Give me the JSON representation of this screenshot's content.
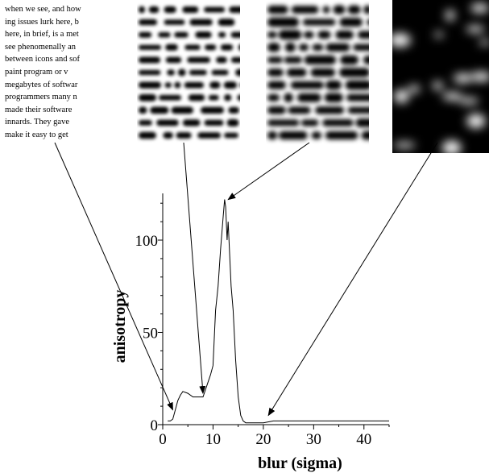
{
  "sample_text_lines": [
    "when we see, and how",
    "ing issues lurk here, b",
    "here, in brief, is a met",
    "see phenomenally an",
    "between icons and sof",
    "paint program or v",
    "megabytes of softwar",
    "programmers many n",
    "made their software",
    "innards. They gave",
    "make it easy to get"
  ],
  "chart_data": {
    "type": "line",
    "xlabel": "blur (sigma)",
    "ylabel": "anisotropy",
    "xlim": [
      0,
      45
    ],
    "ylim": [
      0,
      125
    ],
    "xticks": [
      0,
      10,
      20,
      30,
      40
    ],
    "yticks": [
      0,
      50,
      100
    ],
    "grid": false,
    "series": [
      {
        "x": [
          1.0,
          1.5,
          2.0,
          2.5,
          3.0,
          3.5,
          4.0,
          5.0,
          6.0,
          7.0,
          8.0,
          8.5,
          9.0,
          9.5,
          10.0,
          10.5,
          11.0,
          11.5,
          12.0,
          12.3,
          12.5,
          12.8,
          13.0,
          13.3,
          13.6,
          14.0,
          14.5,
          15.0,
          15.5,
          16.0,
          16.5,
          17.0,
          18.0,
          20.0,
          22.0,
          25.0,
          30.0,
          35.0,
          40.0,
          45.0
        ],
        "y": [
          2,
          2,
          3,
          8,
          13,
          16,
          18,
          17,
          15,
          15,
          15,
          19,
          23,
          27,
          32,
          62,
          75,
          95,
          112,
          122,
          118,
          100,
          110,
          92,
          75,
          62,
          35,
          15,
          5,
          2,
          1,
          1,
          1,
          1,
          2,
          2,
          2,
          2,
          2,
          2
        ]
      }
    ],
    "annotations": [
      {
        "type": "arrow",
        "from_panel": 1,
        "to": [
          2,
          8
        ]
      },
      {
        "type": "arrow",
        "from_panel": 2,
        "to": [
          8,
          17
        ]
      },
      {
        "type": "arrow",
        "from_panel": 3,
        "to": [
          13,
          122
        ]
      },
      {
        "type": "arrow",
        "from_panel": 4,
        "to": [
          21,
          5
        ]
      }
    ]
  },
  "colors": {
    "ink": "#000000",
    "paper": "#ffffff"
  }
}
